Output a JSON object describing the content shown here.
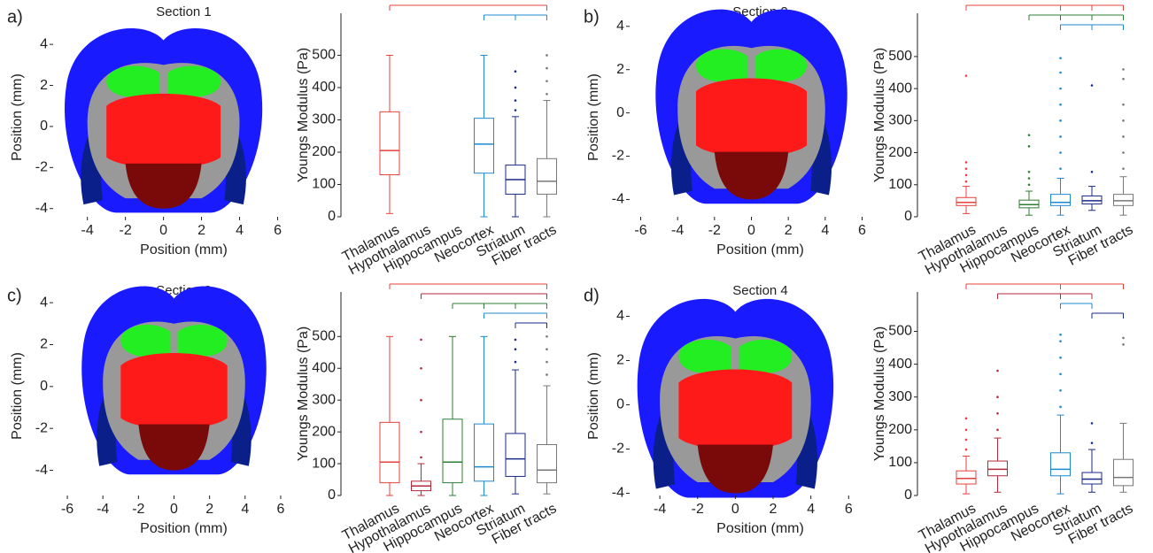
{
  "chart_data": [
    {
      "type": "brain-map",
      "panel_label": "a)",
      "title": "Section 1",
      "xlabel": "Position (mm)",
      "ylabel": "Position (mm)",
      "xlim": [
        -5.8,
        7.0
      ],
      "xticks": [
        -4,
        -2,
        0,
        2,
        4,
        6
      ],
      "ylim": [
        -4.4,
        5.3
      ],
      "yticks": [
        -4,
        -2,
        0,
        2,
        4
      ]
    },
    {
      "type": "box",
      "ylabel": "Youngs Modulus (Pa)",
      "ylim": [
        0,
        630
      ],
      "yticks": [
        0,
        100,
        200,
        300,
        400,
        500
      ],
      "categories": [
        "Thalamus",
        "Hypothalamus",
        "Hippocampus",
        "Neocortex",
        "Striatum",
        "Fiber tracts"
      ],
      "colors": [
        "#e8403a",
        "#b02a3a",
        "#2e7d32",
        "#1e88d0",
        "#1a2a8a",
        "#777777"
      ],
      "boxes": [
        [
          10,
          130,
          205,
          325,
          500
        ],
        null,
        null,
        [
          0,
          135,
          225,
          305,
          500
        ],
        [
          0,
          70,
          115,
          160,
          310
        ],
        [
          0,
          70,
          110,
          180,
          360
        ]
      ],
      "outliers": [
        [],
        [],
        [],
        [],
        [
          330,
          360,
          400,
          450
        ],
        [
          380,
          420,
          460,
          500
        ]
      ],
      "brackets": [
        {
          "color": "#e8403a",
          "categories": [
            "Thalamus",
            "Fiber tracts"
          ]
        },
        {
          "color": "#1e88d0",
          "categories": [
            "Neocortex",
            "Striatum",
            "Fiber tracts"
          ]
        }
      ]
    },
    {
      "type": "brain-map",
      "panel_label": "b)",
      "title": "Section 2",
      "xlabel": "Position (mm)",
      "ylabel": "Position (mm)",
      "xlim": [
        -6.6,
        6.6
      ],
      "xticks": [
        -6,
        -4,
        -2,
        0,
        2,
        4,
        6
      ],
      "ylim": [
        -4.8,
        4.4
      ],
      "yticks": [
        -4,
        -2,
        0,
        2,
        4
      ]
    },
    {
      "type": "box",
      "ylabel": "Youngs Modulus (Pa)",
      "ylim": [
        0,
        635
      ],
      "yticks": [
        0,
        100,
        200,
        300,
        400,
        500
      ],
      "categories": [
        "Thalamus",
        "Hypothalamus",
        "Hippocampus",
        "Neocortex",
        "Striatum",
        "Fiber tracts"
      ],
      "colors": [
        "#e8403a",
        "#b02a3a",
        "#2e7d32",
        "#1e88d0",
        "#1a2a8a",
        "#777777"
      ],
      "boxes": [
        [
          10,
          35,
          45,
          60,
          95
        ],
        null,
        [
          5,
          28,
          38,
          52,
          80
        ],
        [
          5,
          35,
          45,
          70,
          120
        ],
        [
          20,
          40,
          50,
          65,
          95
        ],
        [
          5,
          35,
          50,
          70,
          125
        ]
      ],
      "outliers": [
        [
          110,
          130,
          150,
          170,
          440
        ],
        [],
        [
          100,
          120,
          140,
          220,
          255
        ],
        [
          150,
          200,
          250,
          300,
          350,
          400,
          450,
          495
        ],
        [
          140,
          410
        ],
        [
          150,
          200,
          250,
          300,
          350,
          430,
          460
        ]
      ],
      "brackets": [
        {
          "color": "#e8403a",
          "categories": [
            "Thalamus",
            "Neocortex",
            "Striatum",
            "Fiber tracts"
          ]
        },
        {
          "color": "#2e7d32",
          "categories": [
            "Hippocampus",
            "Neocortex",
            "Striatum",
            "Fiber tracts"
          ]
        },
        {
          "color": "#1e88d0",
          "categories": [
            "Neocortex",
            "Striatum",
            "Fiber tracts"
          ]
        }
      ]
    },
    {
      "type": "brain-map",
      "panel_label": "c)",
      "title": "Section 3",
      "xlabel": "Position (mm)",
      "ylabel": "Position (mm)",
      "xlim": [
        -6.8,
        6.9
      ],
      "xticks": [
        -6,
        -4,
        -2,
        0,
        2,
        4,
        6
      ],
      "ylim": [
        -5.2,
        4.3
      ],
      "yticks": [
        -4,
        -2,
        0,
        2,
        4
      ]
    },
    {
      "type": "box",
      "ylabel": "Youngs Modulus (Pa)",
      "ylim": [
        0,
        640
      ],
      "yticks": [
        0,
        100,
        200,
        300,
        400,
        500
      ],
      "categories": [
        "Thalamus",
        "Hypothalamus",
        "Hippocampus",
        "Neocortex",
        "Striatum",
        "Fiber tracts"
      ],
      "colors": [
        "#e8403a",
        "#b02a3a",
        "#2e7d32",
        "#1e88d0",
        "#1a2a8a",
        "#777777"
      ],
      "boxes": [
        [
          0,
          40,
          105,
          230,
          500
        ],
        [
          0,
          15,
          30,
          45,
          100
        ],
        [
          0,
          40,
          105,
          240,
          500
        ],
        [
          0,
          45,
          90,
          225,
          500
        ],
        [
          5,
          60,
          115,
          195,
          395
        ],
        [
          5,
          40,
          80,
          160,
          345
        ]
      ],
      "outliers": [
        [],
        [
          120,
          200,
          300,
          400,
          490
        ],
        [],
        [],
        [
          420,
          460,
          490
        ],
        [
          380,
          420,
          460,
          500
        ]
      ],
      "brackets": [
        {
          "color": "#e8403a",
          "categories": [
            "Thalamus",
            "Fiber tracts"
          ]
        },
        {
          "color": "#b02a3a",
          "categories": [
            "Hypothalamus",
            "Fiber tracts"
          ]
        },
        {
          "color": "#2e7d32",
          "categories": [
            "Hippocampus",
            "Neocortex",
            "Striatum",
            "Fiber tracts"
          ]
        },
        {
          "color": "#1e88d0",
          "categories": [
            "Neocortex",
            "Fiber tracts"
          ]
        },
        {
          "color": "#1a2a8a",
          "categories": [
            "Striatum",
            "Fiber tracts"
          ]
        }
      ]
    },
    {
      "type": "brain-map",
      "panel_label": "d)",
      "title": "Section 4",
      "xlabel": "Position (mm)",
      "ylabel": "Position (mm)",
      "xlim": [
        -5.6,
        7.3
      ],
      "xticks": [
        -4,
        -2,
        0,
        2,
        4,
        6
      ],
      "ylim": [
        -4.1,
        4.9
      ],
      "yticks": [
        -4,
        -2,
        0,
        2,
        4
      ]
    },
    {
      "type": "box",
      "ylabel": "Youngs Modulus (Pa)",
      "ylim": [
        0,
        620
      ],
      "yticks": [
        0,
        100,
        200,
        300,
        400,
        500
      ],
      "categories": [
        "Thalamus",
        "Hypothalamus",
        "Hippocampus",
        "Neocortex",
        "Striatum",
        "Fiber tracts"
      ],
      "colors": [
        "#e8403a",
        "#b02a3a",
        "#2e7d32",
        "#1e88d0",
        "#1a2a8a",
        "#777777"
      ],
      "boxes": [
        [
          5,
          35,
          52,
          75,
          120
        ],
        [
          10,
          60,
          80,
          105,
          175
        ],
        null,
        [
          5,
          60,
          80,
          130,
          245
        ],
        [
          10,
          35,
          50,
          70,
          140
        ],
        [
          10,
          30,
          55,
          110,
          220
        ]
      ],
      "outliers": [
        [
          140,
          170,
          200,
          235
        ],
        [
          200,
          250,
          300,
          380
        ],
        [],
        [
          270,
          320,
          370,
          420,
          470,
          490
        ],
        [
          160,
          220
        ],
        [
          460,
          480
        ]
      ],
      "brackets": [
        {
          "color": "#e8403a",
          "categories": [
            "Thalamus",
            "Neocortex",
            "Fiber tracts"
          ]
        },
        {
          "color": "#b02a3a",
          "categories": [
            "Hypothalamus",
            "Neocortex",
            "Striatum"
          ]
        },
        {
          "color": "#1e88d0",
          "categories": [
            "Neocortex",
            "Striatum"
          ]
        },
        {
          "color": "#1a2a8a",
          "categories": [
            "Striatum",
            "Fiber tracts"
          ]
        }
      ]
    }
  ]
}
